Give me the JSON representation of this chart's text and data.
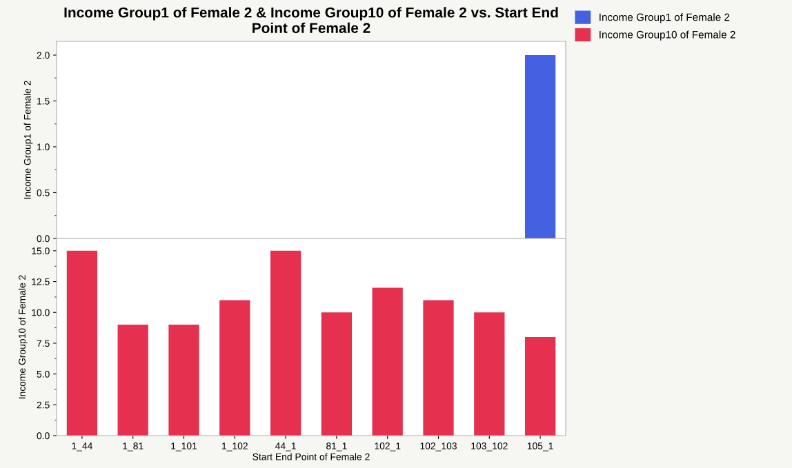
{
  "chart_data": [
    {
      "type": "bar",
      "title": "Income Group1 of Female 2 & Income Group10 of Female 2 vs. Start End Point of Female 2",
      "ylabel": "Income Group1 of Female 2",
      "categories": [
        "1_44",
        "1_81",
        "1_101",
        "1_102",
        "44_1",
        "81_1",
        "102_1",
        "102_103",
        "103_102",
        "105_1"
      ],
      "series": [
        {
          "name": "Income Group1 of Female 2",
          "color": "#4361e0",
          "values": [
            0,
            0,
            0,
            0,
            0,
            0,
            0,
            0,
            0,
            2.0
          ]
        }
      ],
      "ylim": [
        0,
        2.15
      ],
      "yticks": [
        {
          "value": 0,
          "label": "0.0"
        },
        0.5,
        {
          "value": 1,
          "label": "1.0"
        },
        1.5,
        {
          "value": 2,
          "label": "2.0"
        }
      ],
      "tick_labels": "y",
      "legend": "top right",
      "grid": false
    },
    {
      "type": "bar",
      "ylabel": "Income Group10 of Female 2",
      "xlabel": "Start End Point of Female 2",
      "categories": [
        "1_44",
        "1_81",
        "1_101",
        "1_102",
        "44_1",
        "81_1",
        "102_1",
        "102_103",
        "103_102",
        "105_1"
      ],
      "series": [
        {
          "name": "Income Group10 of Female 2",
          "color": "#e5304f",
          "values": [
            15,
            9,
            9,
            11,
            15,
            10,
            12,
            11,
            10,
            8
          ]
        }
      ],
      "ylim": [
        0,
        16
      ],
      "yticks": [
        {
          "value": 0,
          "label": "0.0"
        },
        2.5,
        {
          "value": 5,
          "label": "5.0"
        },
        7.5,
        {
          "value": 10,
          "label": "10.0"
        },
        12.5,
        {
          "value": 15,
          "label": "15.0"
        }
      ],
      "legend": "top right",
      "grid": false
    }
  ]
}
